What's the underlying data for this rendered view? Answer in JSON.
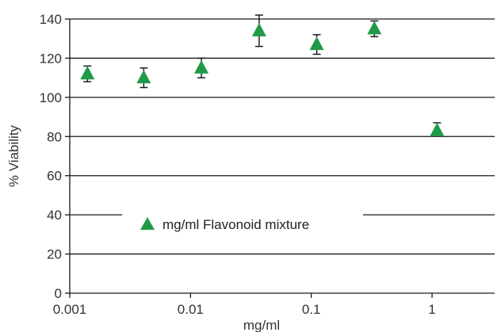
{
  "chart_data": {
    "type": "scatter",
    "title": "",
    "xlabel": "mg/ml",
    "ylabel": "% Viability",
    "xscale": "log",
    "xlim": [
      0.001,
      3.3
    ],
    "ylim": [
      0,
      140
    ],
    "grid": "horizontal",
    "legend": {
      "position": "center-left",
      "entries": [
        "mg/ml Flavonoid mixture"
      ]
    },
    "x_ticks": [
      {
        "value": 0.001,
        "label": "0.001"
      },
      {
        "value": 0.01,
        "label": "0.01"
      },
      {
        "value": 0.1,
        "label": "0.1"
      },
      {
        "value": 1,
        "label": "1"
      }
    ],
    "y_ticks": [
      {
        "value": 0,
        "label": "0"
      },
      {
        "value": 20,
        "label": "20"
      },
      {
        "value": 40,
        "label": "40"
      },
      {
        "value": 60,
        "label": "60"
      },
      {
        "value": 80,
        "label": "80"
      },
      {
        "value": 100,
        "label": "100"
      },
      {
        "value": 120,
        "label": "120"
      },
      {
        "value": 140,
        "label": "140"
      }
    ],
    "series": [
      {
        "name": "mg/ml Flavonoid mixture",
        "marker": "triangle",
        "color": "#1f9a47",
        "points": [
          {
            "x": 0.0014,
            "y": 112,
            "err_low": 108,
            "err_high": 116
          },
          {
            "x": 0.0041,
            "y": 110,
            "err_low": 105,
            "err_high": 115
          },
          {
            "x": 0.0123,
            "y": 115,
            "err_low": 110,
            "err_high": 120
          },
          {
            "x": 0.037,
            "y": 134,
            "err_low": 126,
            "err_high": 142
          },
          {
            "x": 0.111,
            "y": 127,
            "err_low": 122,
            "err_high": 132
          },
          {
            "x": 0.333,
            "y": 135,
            "err_low": 131,
            "err_high": 139
          },
          {
            "x": 1.1,
            "y": 83,
            "err_low": 81,
            "err_high": 87
          }
        ]
      }
    ]
  }
}
